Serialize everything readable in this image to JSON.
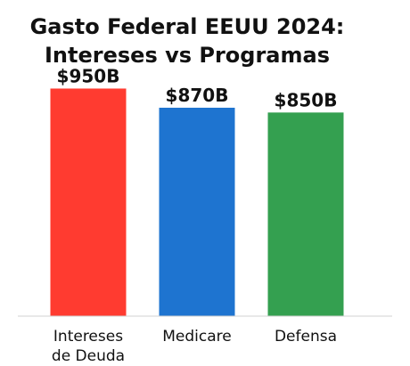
{
  "chart_data": {
    "type": "bar",
    "title_lines": [
      "Gasto Federal EEUU 2024:",
      "Intereses vs Programas"
    ],
    "categories": [
      [
        "Intereses",
        "de Deuda"
      ],
      [
        "Medicare"
      ],
      [
        "Defensa"
      ]
    ],
    "values": [
      950,
      870,
      850
    ],
    "data_labels": [
      "$950B",
      "$870B",
      "$850B"
    ],
    "colors": [
      "#FF3B30",
      "#1E74D0",
      "#34A050"
    ],
    "ylim": [
      0,
      1000
    ],
    "grid": false,
    "legend": "none",
    "xlabel": "",
    "ylabel": ""
  }
}
